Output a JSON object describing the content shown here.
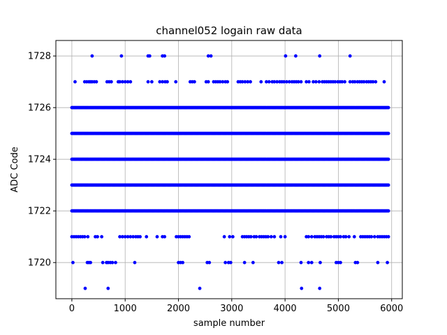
{
  "chart_data": {
    "type": "scatter",
    "title": "channel052 logain raw data",
    "xlabel": "sample number",
    "ylabel": "ADC Code",
    "xlim": [
      -300,
      6200
    ],
    "ylim": [
      1718.6,
      1728.6
    ],
    "xticks": [
      0,
      1000,
      2000,
      3000,
      4000,
      5000,
      6000
    ],
    "yticks": [
      1720,
      1722,
      1724,
      1726,
      1728
    ],
    "xtick_labels": [
      "0",
      "1000",
      "2000",
      "3000",
      "4000",
      "5000",
      "6000"
    ],
    "ytick_labels": [
      "1720",
      "1722",
      "1724",
      "1726",
      "1728"
    ],
    "grid": true,
    "marker_color": "#0000ff",
    "sample_range": [
      0,
      5940
    ],
    "dense_levels": [
      1722,
      1723,
      1724,
      1725,
      1726
    ],
    "sparse_points": [
      {
        "y": 1728,
        "x": [
          380,
          930,
          1430,
          1460,
          1700,
          1740,
          2560,
          2610,
          4010,
          4200,
          4650,
          5220
        ]
      },
      {
        "y": 1727,
        "x": [
          60,
          240,
          280,
          320,
          350,
          380,
          420,
          460,
          660,
          700,
          740,
          870,
          900,
          950,
          1000,
          1050,
          1100,
          1430,
          1500,
          1650,
          1700,
          1750,
          1790,
          1950,
          2220,
          2260,
          2300,
          2520,
          2560,
          2660,
          2700,
          2740,
          2780,
          2830,
          2880,
          2920,
          3120,
          3160,
          3200,
          3250,
          3300,
          3350,
          3550,
          3650,
          3700,
          3760,
          3800,
          3850,
          3900,
          3940,
          3980,
          4030,
          4080,
          4130,
          4170,
          4210,
          4250,
          4300,
          4400,
          4450,
          4530,
          4580,
          4640,
          4700,
          4740,
          4780,
          4820,
          4860,
          4900,
          4940,
          4990,
          5030,
          5070,
          5120,
          5220,
          5270,
          5310,
          5360,
          5400,
          5440,
          5480,
          5530,
          5570,
          5610,
          5650,
          5700,
          5860
        ]
      },
      {
        "y": 1721,
        "x": [
          0,
          40,
          80,
          120,
          160,
          200,
          240,
          300,
          440,
          480,
          560,
          900,
          950,
          1000,
          1050,
          1100,
          1150,
          1200,
          1240,
          1280,
          1400,
          1600,
          1700,
          1740,
          1960,
          2000,
          2040,
          2080,
          2120,
          2160,
          2200,
          2860,
          2960,
          3020,
          3200,
          3240,
          3280,
          3320,
          3360,
          3420,
          3460,
          3520,
          3560,
          3600,
          3640,
          3680,
          3740,
          3800,
          3920,
          4000,
          4400,
          4440,
          4500,
          4560,
          4600,
          4640,
          4680,
          4720,
          4780,
          4820,
          4860,
          4920,
          4960,
          5000,
          5040,
          5100,
          5140,
          5200,
          5300,
          5420,
          5460,
          5500,
          5540,
          5580,
          5620,
          5680,
          5740,
          5780,
          5820,
          5860,
          5900,
          5940
        ]
      },
      {
        "y": 1720,
        "x": [
          20,
          290,
          320,
          350,
          580,
          650,
          680,
          720,
          760,
          820,
          1180,
          2000,
          2040,
          2080,
          2540,
          2580,
          2880,
          2940,
          2980,
          3240,
          3400,
          3880,
          3940,
          4300,
          4440,
          4500,
          4660,
          4960,
          5000,
          5040,
          5320,
          5360,
          5740,
          5920
        ]
      },
      {
        "y": 1719,
        "x": [
          250,
          680,
          2400,
          4310,
          4650
        ]
      }
    ]
  }
}
